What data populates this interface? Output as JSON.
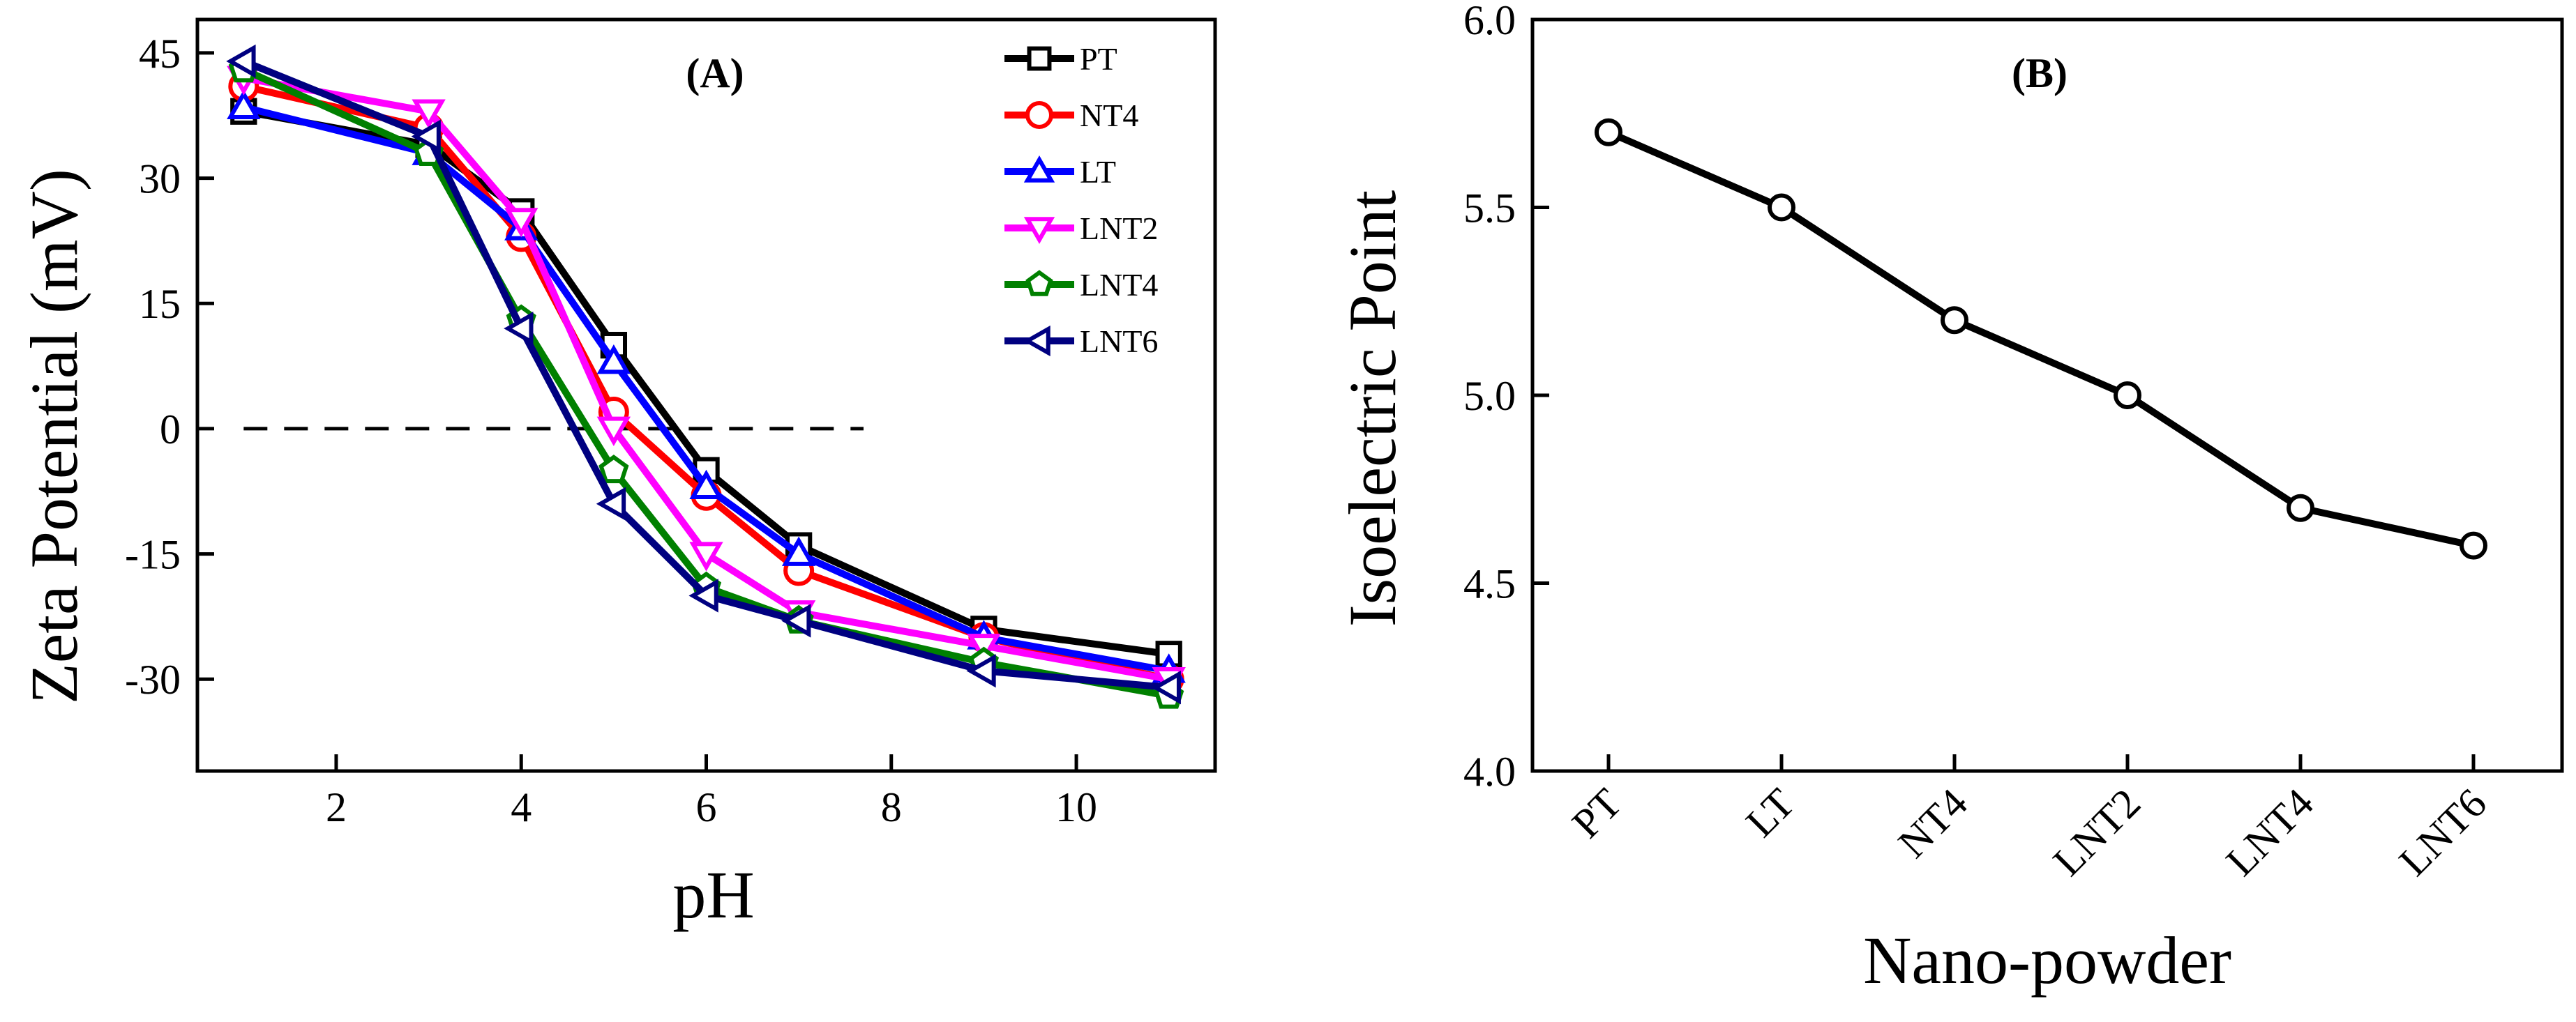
{
  "chart_data": [
    {
      "panel": "(A)",
      "type": "line",
      "xlabel": "pH",
      "ylabel": "Zeta Potential (mV)",
      "xlim": [
        0.5,
        11.5
      ],
      "ylim": [
        -41,
        49
      ],
      "xticks": [
        2,
        4,
        6,
        8,
        10
      ],
      "yticks": [
        45,
        30,
        15,
        0,
        -15,
        -30
      ],
      "reference_line": {
        "y": 0,
        "x_range": [
          1,
          7.7
        ],
        "style": "dashed"
      },
      "legend_position": "top-right",
      "series": [
        {
          "name": "PT",
          "color": "#000000",
          "marker": "square",
          "x": [
            1,
            3,
            4,
            5,
            6,
            7,
            9,
            11
          ],
          "y": [
            38,
            34,
            26,
            10,
            -5,
            -14,
            -24,
            -27
          ]
        },
        {
          "name": "NT4",
          "color": "#ff0000",
          "marker": "circle",
          "x": [
            1,
            3,
            4,
            5,
            6,
            7,
            9,
            11
          ],
          "y": [
            41,
            36,
            23,
            2,
            -8,
            -17,
            -25,
            -30
          ]
        },
        {
          "name": "LT",
          "color": "#0000ff",
          "marker": "triangle-up",
          "x": [
            1,
            3,
            4,
            5,
            6,
            7,
            9,
            11
          ],
          "y": [
            38.5,
            33,
            24,
            8,
            -7,
            -15,
            -25,
            -29
          ]
        },
        {
          "name": "LNT2",
          "color": "#ff00ff",
          "marker": "triangle-down",
          "x": [
            1,
            3,
            4,
            5,
            6,
            7,
            9,
            11
          ],
          "y": [
            42,
            38,
            25,
            0,
            -15,
            -22,
            -26,
            -30
          ]
        },
        {
          "name": "LNT4",
          "color": "#008000",
          "marker": "pentagon",
          "x": [
            1,
            3,
            4,
            5,
            6,
            7,
            9,
            11
          ],
          "y": [
            43,
            33,
            13,
            -5,
            -19,
            -23,
            -28,
            -32
          ]
        },
        {
          "name": "LNT6",
          "color": "#000080",
          "marker": "triangle-left",
          "x": [
            1,
            3,
            4,
            5,
            6,
            7,
            9,
            11
          ],
          "y": [
            44,
            35,
            12,
            -9,
            -20,
            -23,
            -29,
            -31
          ]
        }
      ]
    },
    {
      "panel": "(B)",
      "type": "line",
      "xlabel": "Nano-powder",
      "ylabel": "Isoelectric Point",
      "categories": [
        "PT",
        "LT",
        "NT4",
        "LNT2",
        "LNT4",
        "LNT6"
      ],
      "values": [
        5.7,
        5.5,
        5.2,
        5.0,
        4.7,
        4.6
      ],
      "ylim": [
        4.0,
        6.0
      ],
      "yticks": [
        "6.0",
        "5.5",
        "5.0",
        "4.5",
        "4.0"
      ],
      "color": "#000000",
      "marker": "open-circle"
    }
  ]
}
